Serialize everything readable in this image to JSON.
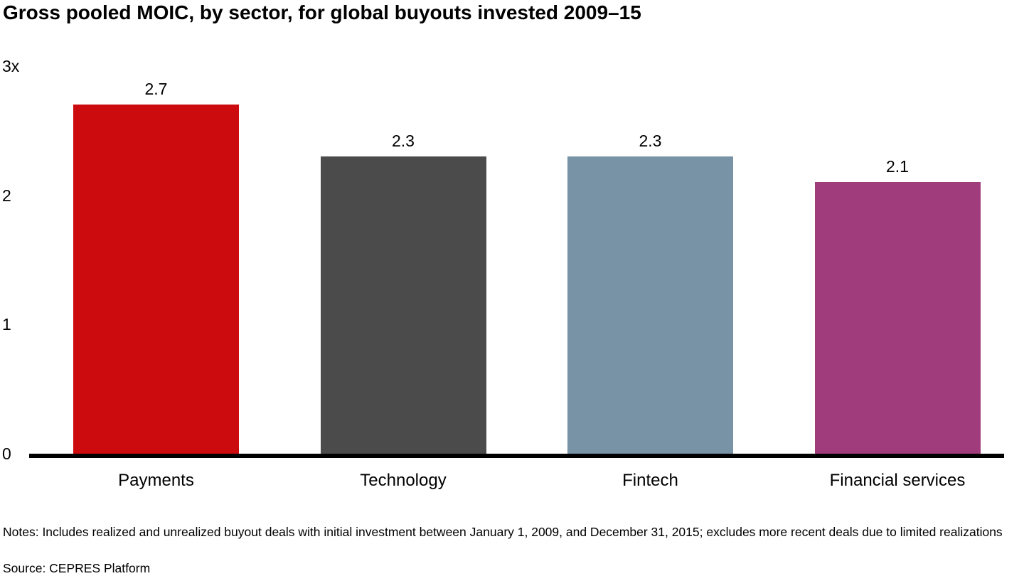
{
  "title": "Gross pooled MOIC, by sector, for global buyouts invested 2009–15",
  "chart_data": {
    "type": "bar",
    "title": "Gross pooled MOIC, by sector, for global buyouts invested 2009–15",
    "categories": [
      "Payments",
      "Technology",
      "Fintech",
      "Financial services"
    ],
    "values": [
      2.7,
      2.3,
      2.3,
      2.1
    ],
    "value_labels": [
      "2.7",
      "2.3",
      "2.3",
      "2.1"
    ],
    "colors": [
      "#cc0b0e",
      "#4b4b4b",
      "#7892a6",
      "#a13c7c"
    ],
    "xlabel": "",
    "ylabel": "",
    "ylim": [
      0,
      3
    ],
    "yticks": [
      {
        "value": 0,
        "label": "0"
      },
      {
        "value": 1,
        "label": "1"
      },
      {
        "value": 2,
        "label": "2"
      },
      {
        "value": 3,
        "label": "3x"
      }
    ],
    "grid": false,
    "legend": false
  },
  "notes": "Notes: Includes realized and unrealized buyout deals with initial investment between January 1, 2009, and December 31, 2015; excludes more recent deals due to limited realizations",
  "source": "Source: CEPRES Platform"
}
